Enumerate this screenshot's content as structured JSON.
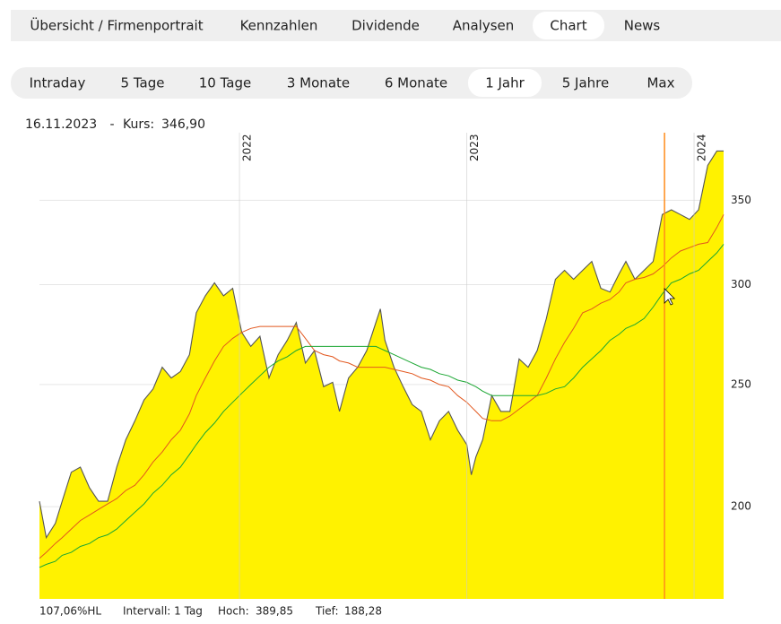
{
  "nav": {
    "items": [
      "Übersicht / Firmenportrait",
      "Kennzahlen",
      "Dividende",
      "Analysen",
      "Chart",
      "News"
    ],
    "active": 4
  },
  "periods": {
    "items": [
      "Intraday",
      "5 Tage",
      "10 Tage",
      "3 Monate",
      "6 Monate",
      "1 Jahr",
      "5 Jahre",
      "Max"
    ],
    "active": 5
  },
  "info": {
    "date": "16.11.2023",
    "separator": "-",
    "label": "Kurs:",
    "value": "346,90"
  },
  "chart_data": {
    "type": "line",
    "log_scale": true,
    "grid": true,
    "area_color": "#fff200",
    "x": [
      2021.12,
      2021.15,
      2021.19,
      2021.22,
      2021.26,
      2021.3,
      2021.34,
      2021.38,
      2021.42,
      2021.46,
      2021.5,
      2021.54,
      2021.58,
      2021.62,
      2021.66,
      2021.7,
      2021.74,
      2021.78,
      2021.81,
      2021.85,
      2021.89,
      2021.93,
      2021.97,
      2022.01,
      2022.05,
      2022.09,
      2022.13,
      2022.17,
      2022.21,
      2022.25,
      2022.29,
      2022.33,
      2022.37,
      2022.41,
      2022.44,
      2022.48,
      2022.52,
      2022.56,
      2022.6,
      2022.62,
      2022.64,
      2022.68,
      2022.72,
      2022.76,
      2022.8,
      2022.84,
      2022.88,
      2022.92,
      2022.96,
      2023.0,
      2023.02,
      2023.04,
      2023.07,
      2023.11,
      2023.15,
      2023.19,
      2023.23,
      2023.27,
      2023.31,
      2023.35,
      2023.39,
      2023.43,
      2023.47,
      2023.51,
      2023.55,
      2023.59,
      2023.63,
      2023.67,
      2023.7,
      2023.74,
      2023.78,
      2023.82,
      2023.86,
      2023.9,
      2023.94,
      2023.98,
      2024.02,
      2024.06,
      2024.1,
      2024.13
    ],
    "series": [
      {
        "color": "#555555",
        "values": [
          202,
          189,
          194,
          202,
          213,
          215,
          207,
          202,
          202,
          215,
          226,
          234,
          243,
          248,
          258,
          253,
          256,
          264,
          285,
          294,
          301,
          294,
          298,
          275,
          268,
          273,
          253,
          264,
          271,
          280,
          260,
          266,
          249,
          251,
          238,
          253,
          258,
          266,
          280,
          287,
          271,
          258,
          249,
          241,
          238,
          226,
          234,
          238,
          230,
          224,
          212,
          219,
          226,
          245,
          238,
          238,
          262,
          258,
          266,
          282,
          303,
          308,
          303,
          308,
          313,
          298,
          296,
          306,
          313,
          303,
          308,
          313,
          341,
          344,
          341,
          338,
          344,
          373,
          383,
          383
        ]
      },
      {
        "color": "#e2571e",
        "values": [
          182,
          184,
          187,
          189,
          192,
          195,
          197,
          199,
          201,
          203,
          206,
          208,
          212,
          217,
          221,
          226,
          230,
          237,
          245,
          253,
          261,
          268,
          272,
          275,
          277,
          278,
          278,
          278,
          278,
          278,
          272,
          266,
          264,
          263,
          261,
          260,
          258,
          258,
          258,
          258,
          258,
          257,
          256,
          255,
          253,
          252,
          250,
          249,
          245,
          242,
          240,
          238,
          235,
          234,
          234,
          236,
          239,
          242,
          245,
          253,
          262,
          270,
          277,
          285,
          287,
          290,
          292,
          296,
          301,
          303,
          304,
          306,
          310,
          315,
          319,
          321,
          323,
          324,
          333,
          341
        ]
      },
      {
        "color": "#1aa632",
        "values": [
          179,
          180,
          181,
          183,
          184,
          186,
          187,
          189,
          190,
          192,
          195,
          198,
          201,
          205,
          208,
          212,
          215,
          220,
          224,
          229,
          233,
          238,
          242,
          246,
          250,
          254,
          258,
          261,
          263,
          266,
          268,
          268,
          268,
          268,
          268,
          268,
          268,
          268,
          268,
          267,
          266,
          264,
          262,
          260,
          258,
          257,
          255,
          254,
          252,
          251,
          250,
          249,
          247,
          245,
          245,
          245,
          245,
          245,
          245,
          246,
          248,
          249,
          253,
          258,
          262,
          266,
          271,
          274,
          277,
          279,
          282,
          288,
          295,
          301,
          303,
          306,
          308,
          313,
          318,
          323
        ]
      }
    ],
    "xlim": [
      2021.12,
      2024.13
    ],
    "xticks": [
      2022,
      2023,
      2024
    ],
    "ylim": [
      169,
      396
    ],
    "yticks": [
      200,
      250,
      300,
      350
    ],
    "cursor": {
      "x": 2023.87,
      "color": "#ff8c1a"
    }
  },
  "footer": {
    "range": "107,06%HL",
    "interval": "Intervall: 1 Tag",
    "high_label": "Hoch:",
    "high": "389,85",
    "low_label": "Tief:",
    "low": "188,28"
  }
}
